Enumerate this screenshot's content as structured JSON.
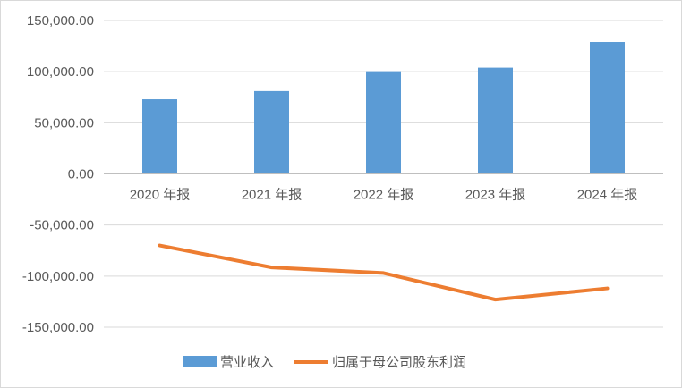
{
  "chart_data": {
    "type": "bar+line",
    "categories": [
      "2020 年报",
      "2021 年报",
      "2022 年报",
      "2023 年报",
      "2024 年报"
    ],
    "series": [
      {
        "name": "营业收入",
        "type": "bar",
        "color": "#5B9BD5",
        "values": [
          73000,
          81000,
          100500,
          104000,
          129000
        ]
      },
      {
        "name": "归属于母公司股东利润",
        "type": "line",
        "color": "#ED7D31",
        "values": [
          -70000,
          -91500,
          -97000,
          -123000,
          -112000
        ]
      }
    ],
    "yticks": [
      "150,000.00",
      "100,000.00",
      "50,000.00",
      "0.00",
      "-50,000.00",
      "-100,000.00",
      "-150,000.00"
    ],
    "ylim": [
      -150000,
      150000
    ],
    "grid": true,
    "legend_position": "bottom"
  }
}
